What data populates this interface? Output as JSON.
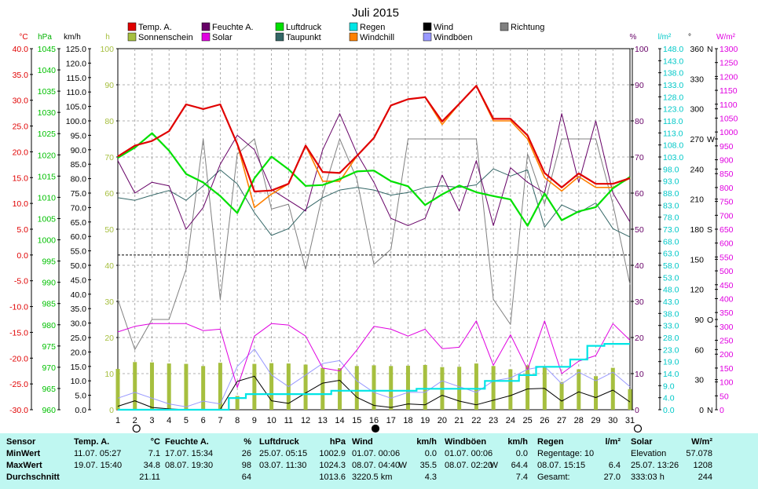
{
  "title": "Juli 2015",
  "legend": [
    {
      "label": "Temp. A.",
      "color": "#e00000"
    },
    {
      "label": "Sonnenschein",
      "color": "#a6bf3f"
    },
    {
      "label": "Feuchte A.",
      "color": "#660066"
    },
    {
      "label": "Solar",
      "color": "#e000e0"
    },
    {
      "label": "Luftdruck",
      "color": "#00e000"
    },
    {
      "label": "Taupunkt",
      "color": "#336666"
    },
    {
      "label": "Regen",
      "color": "#00e5e5"
    },
    {
      "label": "Windchill",
      "color": "#ff8000"
    },
    {
      "label": "Wind",
      "color": "#000000"
    },
    {
      "label": "Windböen",
      "color": "#9999ff"
    },
    {
      "label": "Richtung",
      "color": "#808080"
    }
  ],
  "axis_units": {
    "temp": "°C",
    "hpa": "hPa",
    "kmh": "km/h",
    "h": "h",
    "pct": "%",
    "rain": "l/m²",
    "dir": "°",
    "solar": "W/m²"
  },
  "ticks": {
    "temp": [
      "40.0",
      "35.0",
      "30.0",
      "25.0",
      "20.0",
      "15.0",
      "10.0",
      "5.0",
      "0.0",
      "-5.0",
      "-10.0",
      "-15.0",
      "-20.0",
      "-25.0",
      "-30.0"
    ],
    "hpa": [
      "1045",
      "1040",
      "1035",
      "1030",
      "1025",
      "1020",
      "1015",
      "1010",
      "1005",
      "1000",
      "995",
      "990",
      "985",
      "980",
      "975",
      "970",
      "965",
      "960"
    ],
    "kmh": [
      "125.0",
      "120.0",
      "115.0",
      "110.0",
      "105.0",
      "100.0",
      "95.0",
      "90.0",
      "85.0",
      "80.0",
      "75.0",
      "70.0",
      "65.0",
      "60.0",
      "55.0",
      "50.0",
      "45.0",
      "40.0",
      "35.0",
      "30.0",
      "25.0",
      "20.0",
      "15.0",
      "10.0",
      "5.0",
      "0.0"
    ],
    "h": [
      "100",
      "90",
      "80",
      "70",
      "60",
      "50",
      "40",
      "30",
      "20",
      "10",
      "0"
    ],
    "pct": [
      "100",
      "90",
      "80",
      "70",
      "60",
      "50",
      "40",
      "30",
      "20",
      "10",
      "0"
    ],
    "rain": [
      "148.0",
      "143.0",
      "138.0",
      "133.0",
      "128.0",
      "123.0",
      "118.0",
      "113.0",
      "108.0",
      "103.0",
      "98.0",
      "93.0",
      "88.0",
      "83.0",
      "78.0",
      "73.0",
      "68.0",
      "63.0",
      "58.0",
      "53.0",
      "48.0",
      "43.0",
      "38.0",
      "33.0",
      "28.0",
      "23.0",
      "19.0",
      "14.0",
      "9.0",
      "4.0",
      "0.0"
    ],
    "dir": [
      "360",
      "330",
      "300",
      "270",
      "240",
      "210",
      "180",
      "150",
      "120",
      "90",
      "60",
      "30",
      "0"
    ],
    "dir_letters": [
      "N",
      "",
      "",
      "W",
      "",
      "",
      "S",
      "",
      "",
      "O",
      "",
      "",
      "N"
    ],
    "solar": [
      "1300",
      "1250",
      "1200",
      "1150",
      "1100",
      "1050",
      "1000",
      "950",
      "900",
      "850",
      "800",
      "750",
      "700",
      "650",
      "600",
      "550",
      "500",
      "450",
      "400",
      "350",
      "300",
      "250",
      "200",
      "150",
      "100",
      "50",
      "0"
    ],
    "days": [
      "1",
      "2",
      "3",
      "4",
      "5",
      "6",
      "7",
      "8",
      "9",
      "10",
      "11",
      "12",
      "13",
      "14",
      "15",
      "16",
      "17",
      "18",
      "19",
      "20",
      "21",
      "22",
      "23",
      "24",
      "25",
      "26",
      "27",
      "28",
      "29",
      "30",
      "31"
    ]
  },
  "chart_data": {
    "type": "line",
    "title": "Juli 2015",
    "x": [
      1,
      2,
      3,
      4,
      5,
      6,
      7,
      8,
      9,
      10,
      11,
      12,
      13,
      14,
      15,
      16,
      17,
      18,
      19,
      20,
      21,
      22,
      23,
      24,
      25,
      26,
      27,
      28,
      29,
      30,
      31
    ],
    "series": [
      {
        "name": "Temp. A.",
        "unit": "°C",
        "color": "#e00000",
        "values": [
          19.1,
          21.2,
          22.1,
          24,
          29.2,
          28.3,
          29.2,
          21.5,
          12.3,
          12.5,
          13.8,
          21.2,
          16.1,
          15.9,
          19.2,
          22.7,
          29,
          30.2,
          30.6,
          25.9,
          29.3,
          32.8,
          26.4,
          26.4,
          23.2,
          15.9,
          13.1,
          15.8,
          13.8,
          13.8,
          14.9
        ]
      },
      {
        "name": "Windchill",
        "unit": "°C",
        "color": "#ff8000",
        "values": [
          19.1,
          21.2,
          22.1,
          24,
          29.2,
          28.3,
          29.2,
          21.5,
          9.2,
          11.8,
          13.8,
          21.2,
          14.3,
          14.3,
          19.2,
          22.7,
          29,
          30.2,
          30.6,
          25.3,
          29.3,
          32.8,
          26,
          26,
          22.5,
          15,
          12.4,
          15.2,
          13.1,
          13.1,
          14.9
        ]
      },
      {
        "name": "Taupunkt",
        "unit": "°C",
        "color": "#336666",
        "values": [
          11.1,
          10.6,
          11.6,
          12.5,
          10.6,
          13.4,
          16.5,
          13.8,
          8.2,
          3.8,
          5.1,
          8.9,
          11.1,
          12.6,
          13.1,
          12.6,
          11.6,
          12.1,
          13.1,
          13.4,
          13.1,
          13.6,
          16.7,
          15.3,
          16.5,
          5.4,
          9.7,
          8.2,
          10.1,
          5.1,
          3.5
        ]
      },
      {
        "name": "Luftdruck",
        "unit": "hPa",
        "color": "#00e000",
        "values": [
          1019.3,
          1021.7,
          1025.1,
          1021,
          1015.5,
          1013.5,
          1010.3,
          1006.3,
          1014.5,
          1019.6,
          1016.6,
          1012.7,
          1012.9,
          1014.3,
          1016.1,
          1016.3,
          1013.8,
          1012.6,
          1008.2,
          1010.7,
          1012.8,
          1011.2,
          1010.3,
          1009.5,
          1003.3,
          1010.9,
          1004.6,
          1006.7,
          1007.7,
          1012.1,
          1014.8
        ]
      },
      {
        "name": "Feuchte A.",
        "unit": "%",
        "color": "#660066",
        "values": [
          69,
          60,
          63,
          62,
          50,
          56,
          68,
          76,
          72,
          61,
          58,
          55,
          72,
          82,
          71,
          63,
          53,
          51,
          53,
          65,
          55,
          69,
          51,
          67,
          63,
          60,
          82,
          63,
          80,
          60,
          52
        ]
      },
      {
        "name": "Wind",
        "unit": "km/h",
        "color": "#000000",
        "values": [
          1.2,
          3.1,
          0.8,
          0.3,
          0,
          0,
          0.1,
          9.8,
          11.6,
          3.1,
          2.2,
          5.8,
          9.2,
          10.2,
          4.3,
          1.5,
          0.8,
          2,
          1.7,
          5,
          3,
          1.7,
          3.3,
          4.9,
          7.2,
          7.4,
          3,
          6.2,
          4.2,
          6.8,
          2.7
        ]
      },
      {
        "name": "Windböen",
        "unit": "km/h",
        "color": "#9999ff",
        "values": [
          4,
          6,
          4,
          2,
          1,
          3,
          2,
          15,
          21,
          12,
          8,
          12,
          16,
          17,
          10,
          6,
          4,
          6,
          6,
          10,
          8,
          6,
          10,
          11,
          14,
          15,
          9,
          13,
          10,
          13,
          8
        ]
      },
      {
        "name": "Richtung",
        "unit": "°",
        "color": "#808080",
        "values": [
          110,
          60,
          90,
          90,
          140,
          270,
          110,
          255,
          270,
          200,
          205,
          140,
          215,
          270,
          230,
          145,
          160,
          270,
          270,
          270,
          270,
          270,
          110,
          85,
          255,
          205,
          270,
          270,
          270,
          205,
          125
        ]
      },
      {
        "name": "Solar",
        "unit": "W/m²",
        "color": "#e000e0",
        "values": [
          280,
          300,
          310,
          310,
          310,
          285,
          290,
          80,
          265,
          310,
          305,
          265,
          150,
          140,
          215,
          300,
          290,
          265,
          290,
          220,
          225,
          320,
          160,
          270,
          145,
          320,
          130,
          175,
          195,
          310,
          250
        ]
      },
      {
        "name": "Sonnenschein",
        "unit": "h",
        "color": "#a6bf3f",
        "type": "bar",
        "values": [
          11.3,
          13.2,
          13.1,
          12.8,
          12.7,
          12.1,
          13,
          3.8,
          12.7,
          12.9,
          12.8,
          12.5,
          11.6,
          11.5,
          12.1,
          12.3,
          12.1,
          12.2,
          12.4,
          11.8,
          11.9,
          12.8,
          12.1,
          11.2,
          12.3,
          12.1,
          7.7,
          11.2,
          9.3,
          11.6,
          5.7
        ]
      },
      {
        "name": "Regen",
        "unit": "l/m²",
        "color": "#00e5e5",
        "cumulative": true,
        "values": [
          0,
          0,
          0,
          0,
          0,
          0,
          0,
          4.8,
          6.4,
          6.4,
          6.4,
          6.4,
          6.4,
          7.8,
          7.8,
          7.8,
          7.8,
          7.8,
          8.6,
          8.6,
          8.6,
          8.6,
          11.8,
          11.8,
          14.2,
          17.6,
          17.6,
          20.6,
          26.2,
          27,
          27
        ]
      }
    ],
    "reference_line": {
      "unit": "°C",
      "value": 0.0,
      "style": "dashed"
    }
  },
  "stats": {
    "sensor": {
      "header": "Sensor",
      "rows": [
        "MinWert",
        "MaxWert",
        "Durchschnitt"
      ]
    },
    "temp": {
      "header": "Temp. A.",
      "unit": "°C",
      "rows": [
        [
          "11.07. 05:27",
          "7.1"
        ],
        [
          "19.07. 15:40",
          "34.8"
        ],
        [
          "",
          "21.11"
        ]
      ]
    },
    "hum": {
      "header": "Feuchte A.",
      "unit": "%",
      "rows": [
        [
          "17.07. 15:34",
          "26"
        ],
        [
          "08.07. 19:30",
          "98"
        ],
        [
          "",
          "64"
        ]
      ]
    },
    "press": {
      "header": "Luftdruck",
      "unit": "hPa",
      "rows": [
        [
          "25.07. 05:15",
          "1002.9"
        ],
        [
          "03.07. 11:30",
          "1024.3"
        ],
        [
          "",
          "1013.6"
        ]
      ]
    },
    "wind": {
      "header": "Wind",
      "unit": "km/h",
      "rows": [
        [
          "01.07. 00:06",
          "",
          "0.0"
        ],
        [
          "08.07. 04:40",
          "W",
          "35.5"
        ],
        [
          "3220.5 km",
          "",
          "4.3"
        ]
      ]
    },
    "gust": {
      "header": "Windböen",
      "unit": "km/h",
      "rows": [
        [
          "01.07. 00:06",
          "",
          "0.0"
        ],
        [
          "08.07. 02:20",
          "W",
          "64.4"
        ],
        [
          "",
          "",
          "7.4"
        ]
      ]
    },
    "rain": {
      "header": "Regen",
      "unit": "l/m²",
      "rows": [
        [
          "Regentage: 10",
          ""
        ],
        [
          "08.07. 15:15",
          "6.4"
        ],
        [
          "Gesamt:",
          "27.0"
        ]
      ]
    },
    "solar": {
      "header": "Solar",
      "unit": "W/m²",
      "rows": [
        [
          "Elevation",
          "57.078"
        ],
        [
          "25.07. 13:26",
          "1208"
        ],
        [
          "333:03 h",
          "244"
        ]
      ]
    }
  }
}
